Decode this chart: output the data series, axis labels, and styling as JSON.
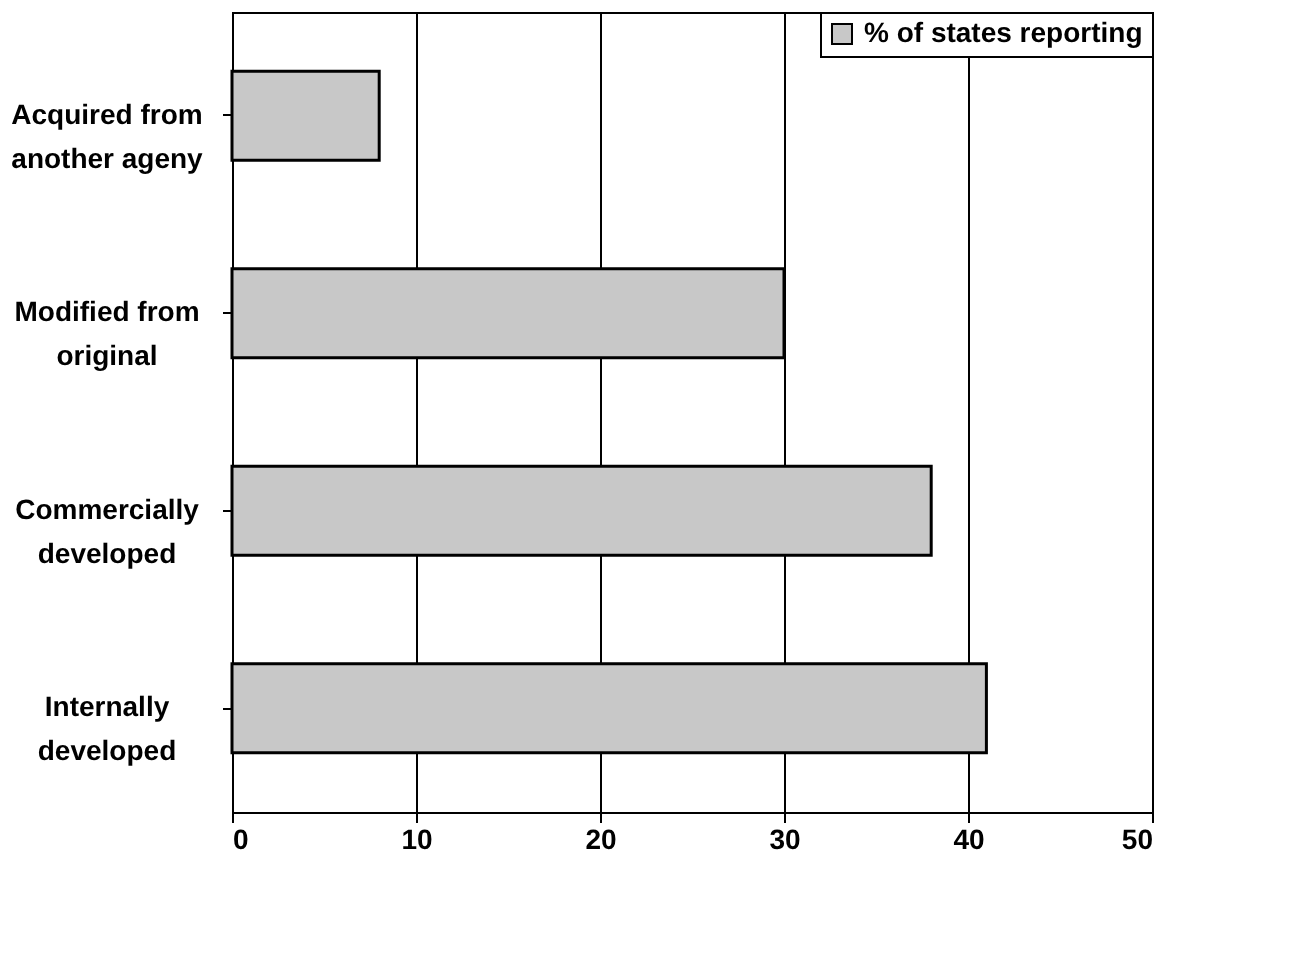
{
  "chart_data": {
    "type": "bar",
    "orientation": "horizontal",
    "categories": [
      "Acquired from another ageny",
      "Modified from original",
      "Commercially developed",
      "Internally developed"
    ],
    "series": [
      {
        "name": "% of states reporting",
        "color": "#c8c8c8",
        "values": [
          8,
          30,
          38,
          41
        ]
      }
    ],
    "xlim": [
      0,
      50
    ],
    "xticks": [
      0,
      10,
      20,
      30,
      40,
      50
    ],
    "grid": "x",
    "legend": "top right"
  }
}
